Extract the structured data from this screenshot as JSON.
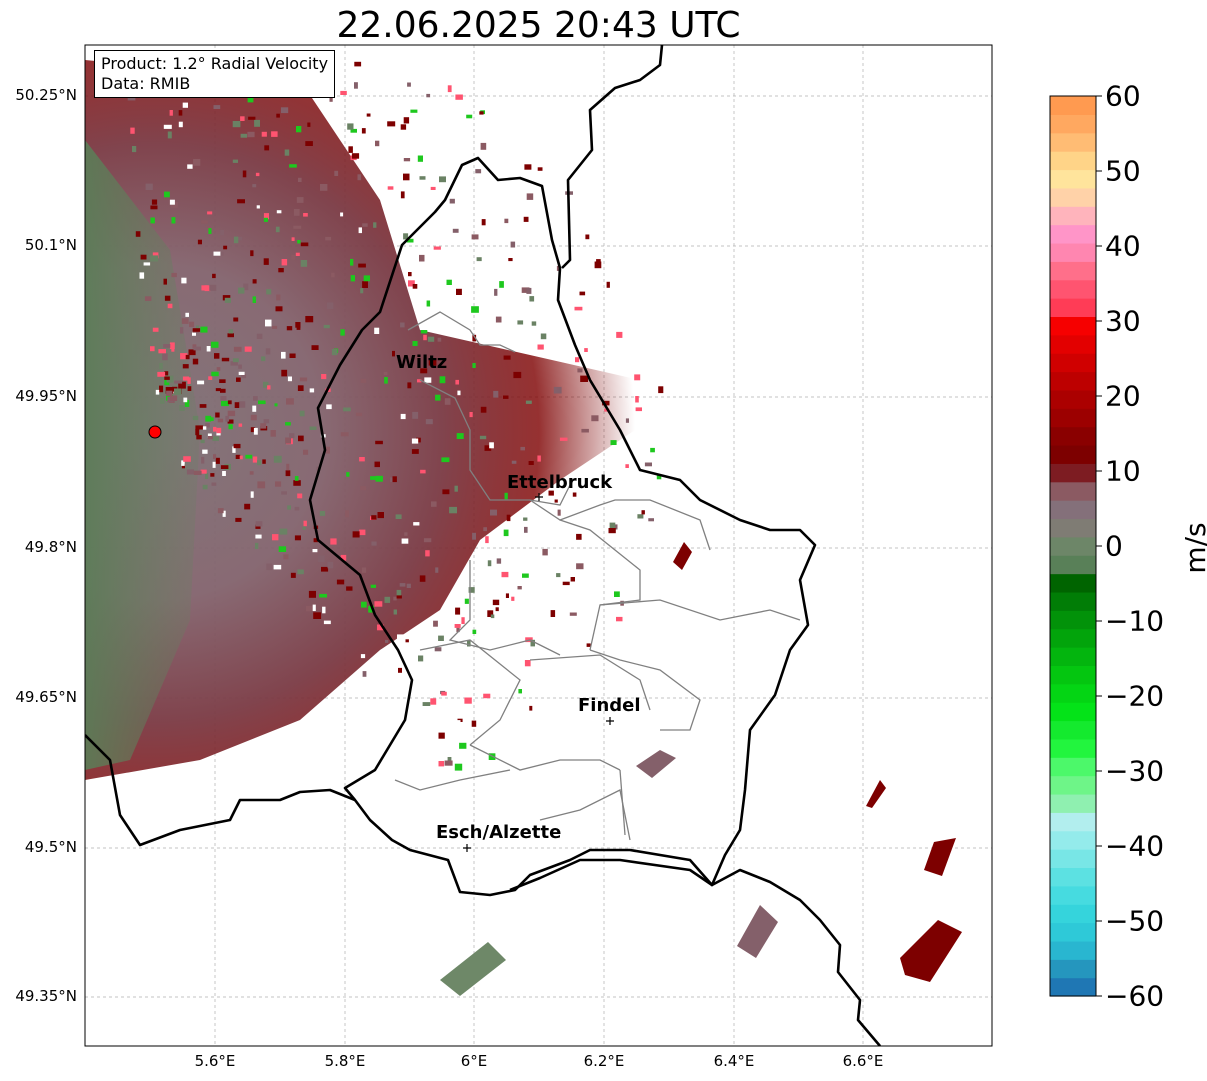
{
  "title": "22.06.2025 20:43 UTC",
  "info": {
    "product": "Product: 1.2° Radial Velocity",
    "data": "Data: RMIB"
  },
  "map": {
    "lon_range": [
      5.4,
      6.8
    ],
    "lat_range": [
      49.28,
      50.28
    ],
    "lat_ticks": [
      "50.25°N",
      "50.1°N",
      "49.95°N",
      "49.8°N",
      "49.65°N",
      "49.5°N",
      "49.35°N"
    ],
    "lon_ticks": [
      "5.6°E",
      "5.8°E",
      "6°E",
      "6.2°E",
      "6.4°E",
      "6.6°E"
    ],
    "radar_site": {
      "lon": 5.505,
      "lat": 49.914
    },
    "cities": [
      {
        "name": "Wiltz",
        "lon": 5.93,
        "lat": 49.966
      },
      {
        "name": "Ettelbruck",
        "lon": 6.104,
        "lat": 49.847
      },
      {
        "name": "Findel",
        "lon": 6.211,
        "lat": 49.627
      },
      {
        "name": "Esch/Alzette",
        "lon": 5.99,
        "lat": 49.496
      }
    ]
  },
  "colorbar": {
    "unit": "m/s",
    "ticks": [
      "60",
      "50",
      "40",
      "30",
      "20",
      "10",
      "0",
      "−10",
      "−20",
      "−30",
      "−40",
      "−50",
      "−60"
    ],
    "range": [
      -60,
      60
    ],
    "colors": [
      "#1f77b4",
      "#2596be",
      "#29b6d0",
      "#2ec9d8",
      "#35d4dc",
      "#46dbe0",
      "#5ce1e2",
      "#78e6e6",
      "#94ebeb",
      "#b2eeee",
      "#8ff0b0",
      "#6ef588",
      "#4cf86a",
      "#22f53e",
      "#14ea2e",
      "#04e318",
      "#04d514",
      "#04c610",
      "#03b50e",
      "#02a40b",
      "#029209",
      "#017d06",
      "#006400",
      "#598058",
      "#6d8668",
      "#7f7c74",
      "#84707a",
      "#8b5a62",
      "#7d1c22",
      "#7d0000",
      "#8a0000",
      "#9c0000",
      "#ab0000",
      "#bd0000",
      "#d00000",
      "#e30000",
      "#f60000",
      "#ff3c56",
      "#ff5470",
      "#ff6f8a",
      "#ff86b0",
      "#ff95c8",
      "#ffb4bc",
      "#ffd2a8",
      "#ffe49c",
      "#ffd488",
      "#ffbc74",
      "#ffa860",
      "#ff9a50"
    ]
  }
}
